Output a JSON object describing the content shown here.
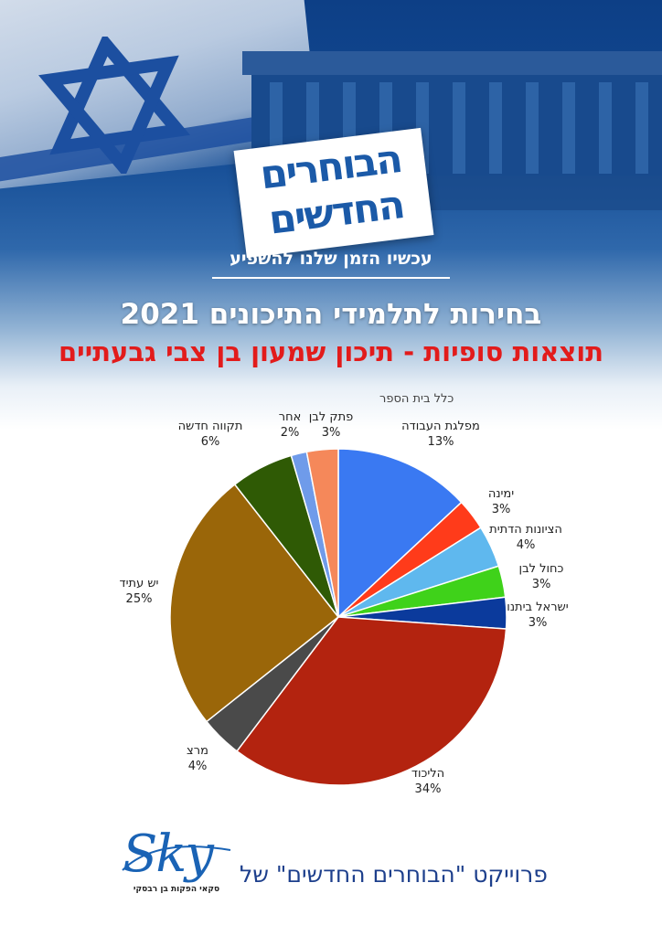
{
  "header": {
    "logo_line1": "הבוחרים",
    "logo_line2": "החדשים",
    "slogan": "עכשיו הזמן שלנו להשפיע",
    "title": "בחירות לתלמידי התיכונים 2021",
    "subtitle": "תוצאות סופיות - תיכון שמעון בן צבי גבעתיים"
  },
  "chart_data": {
    "type": "pie",
    "title": "בחירות לתלמידי התיכונים 2021",
    "subtitle": "תוצאות סופיות - תיכון שמעון בן צבי גבעתיים",
    "annotation": "כלל בית הספר",
    "start_angle_deg": 0,
    "direction": "clockwise",
    "slices": [
      {
        "label": "מפלגת העבודה",
        "value": 13,
        "display": "13%",
        "color": "#3a79f2"
      },
      {
        "label": "ימינה",
        "value": 3,
        "display": "3%",
        "color": "#ff3b1a"
      },
      {
        "label": "הציונות הדתית",
        "value": 4,
        "display": "4%",
        "color": "#5fb8ee"
      },
      {
        "label": "כחול לבן",
        "value": 3,
        "display": "3%",
        "color": "#3fd21a"
      },
      {
        "label": "ישראל ביתנו",
        "value": 3,
        "display": "3%",
        "color": "#0b3a9c"
      },
      {
        "label": "הליכוד",
        "value": 34,
        "display": "34%",
        "color": "#b3230f"
      },
      {
        "label": "מרצ",
        "value": 4,
        "display": "4%",
        "color": "#4a4a4a"
      },
      {
        "label": "יש עתיד",
        "value": 25,
        "display": "25%",
        "color": "#9a6609"
      },
      {
        "label": "תקווה חדשה",
        "value": 6,
        "display": "6%",
        "color": "#2f5a05"
      },
      {
        "label": "אחר",
        "value": 1.5,
        "display": "2%",
        "color": "#6f9bea"
      },
      {
        "label": "פתק לבן",
        "value": 3,
        "display": "3%",
        "color": "#f5885a"
      }
    ]
  },
  "footer": {
    "project_text": "פרוייקט \"הבוחרים החדשים\" של",
    "sky_word": "Sky",
    "sky_sub": "סקאי הפקות בן רבסקי"
  },
  "colors": {
    "brand_blue": "#1b5aa8",
    "title_red": "#e21b1b",
    "footer_blue": "#1d3f8c"
  }
}
